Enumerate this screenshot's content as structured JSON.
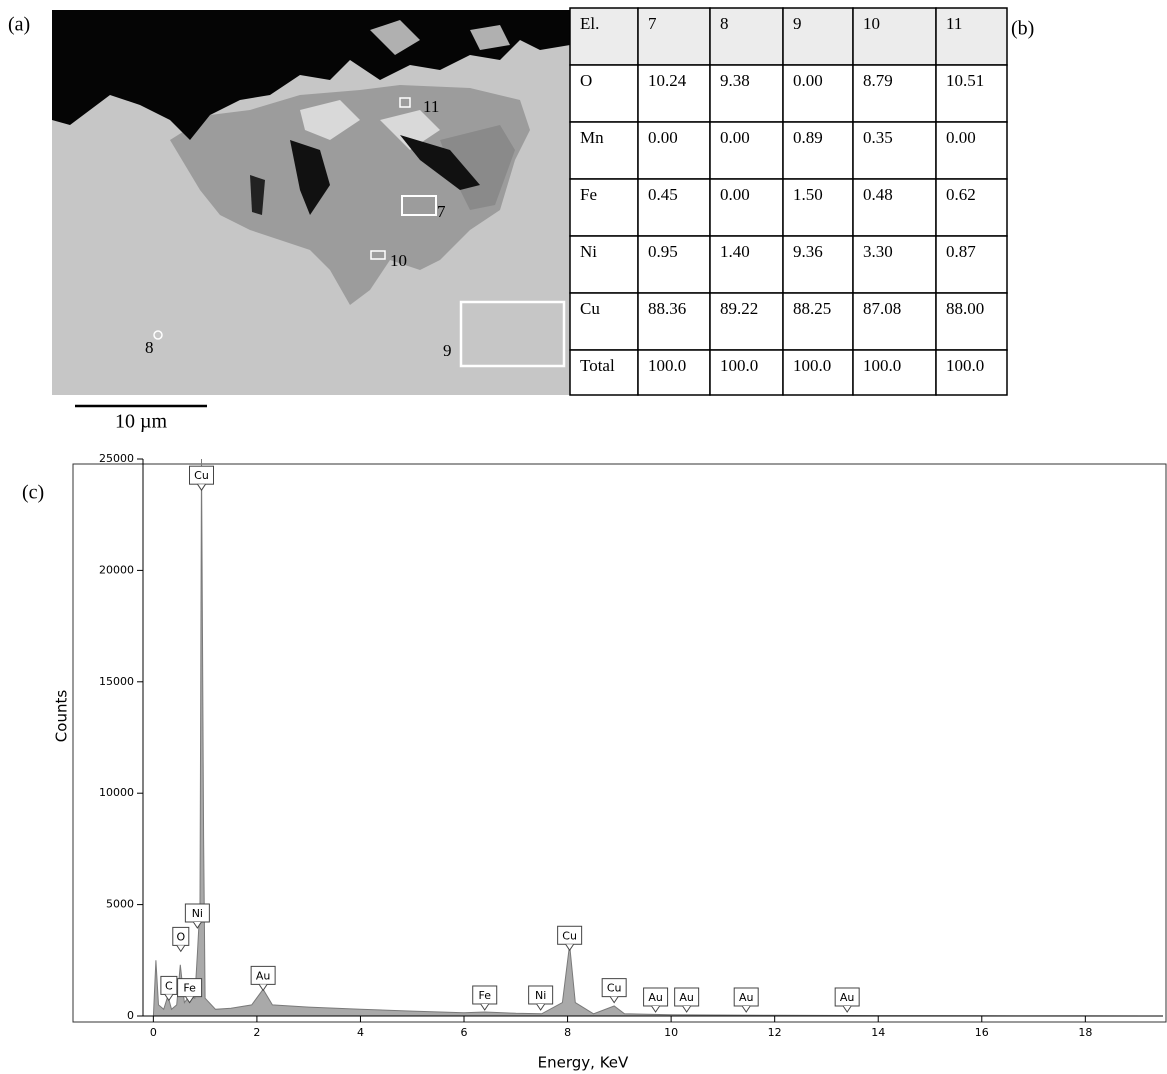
{
  "panels": {
    "a": "(a)",
    "b": "(b)",
    "c": "(c)"
  },
  "image": {
    "points": [
      "11",
      "7",
      "10",
      "8",
      "9"
    ],
    "scale_bar": "10 µm"
  },
  "table": {
    "header": [
      "El.",
      "7",
      "8",
      "9",
      "10",
      "11"
    ],
    "rows": [
      [
        "O",
        "10.24",
        "9.38",
        "0.00",
        "8.79",
        "10.51"
      ],
      [
        "Mn",
        "0.00",
        "0.00",
        "0.89",
        "0.35",
        "0.00"
      ],
      [
        "Fe",
        "0.45",
        "0.00",
        "1.50",
        "0.48",
        "0.62"
      ],
      [
        "Ni",
        "0.95",
        "1.40",
        "9.36",
        "3.30",
        "0.87"
      ],
      [
        "Cu",
        "88.36",
        "89.22",
        "88.25",
        "87.08",
        "88.00"
      ],
      [
        "Total",
        "100.0",
        "100.0",
        "100.0",
        "100.0",
        "100.0"
      ]
    ]
  },
  "chart_data": {
    "type": "area",
    "x_label": "Energy, KeV",
    "y_label": "Counts",
    "x": [
      0,
      0.05,
      0.1,
      0.2,
      0.28,
      0.35,
      0.45,
      0.52,
      0.6,
      0.7,
      0.8,
      0.85,
      0.9,
      0.93,
      0.97,
      1.0,
      1.2,
      1.5,
      1.9,
      2.12,
      2.3,
      3,
      4,
      5,
      6,
      6.4,
      7,
      7.5,
      7.9,
      8.04,
      8.15,
      8.5,
      8.9,
      9.1,
      10,
      12,
      14,
      16,
      18,
      19.5
    ],
    "values": [
      0,
      2500,
      500,
      300,
      900,
      300,
      500,
      2300,
      600,
      900,
      800,
      2800,
      5000,
      25000,
      8000,
      800,
      300,
      350,
      500,
      1200,
      500,
      400,
      300,
      220,
      150,
      180,
      120,
      100,
      600,
      3200,
      600,
      100,
      450,
      100,
      60,
      30,
      20,
      10,
      5,
      0
    ],
    "color": "#a9a9a9",
    "xlim": [
      -0.2,
      19.5
    ],
    "ylim": [
      0,
      25000
    ],
    "xticks": [
      0,
      2,
      4,
      6,
      8,
      10,
      12,
      14,
      16,
      18
    ],
    "yticks": [
      0,
      5000,
      10000,
      15000,
      20000,
      25000
    ],
    "annotations": [
      {
        "text": "Cu",
        "x": 0.93,
        "y": 23600
      },
      {
        "text": "C",
        "x": 0.3,
        "y": 700
      },
      {
        "text": "O",
        "x": 0.53,
        "y": 2900
      },
      {
        "text": "Fe",
        "x": 0.7,
        "y": 600
      },
      {
        "text": "Ni",
        "x": 0.85,
        "y": 3950
      },
      {
        "text": "Au",
        "x": 2.12,
        "y": 1150
      },
      {
        "text": "Fe",
        "x": 6.4,
        "y": 270
      },
      {
        "text": "Ni",
        "x": 7.48,
        "y": 270
      },
      {
        "text": "Cu",
        "x": 8.04,
        "y": 2950
      },
      {
        "text": "Cu",
        "x": 8.9,
        "y": 600
      },
      {
        "text": "Au",
        "x": 9.7,
        "y": 180
      },
      {
        "text": "Au",
        "x": 10.3,
        "y": 180
      },
      {
        "text": "Au",
        "x": 11.45,
        "y": 180
      },
      {
        "text": "Au",
        "x": 13.4,
        "y": 180
      }
    ]
  }
}
